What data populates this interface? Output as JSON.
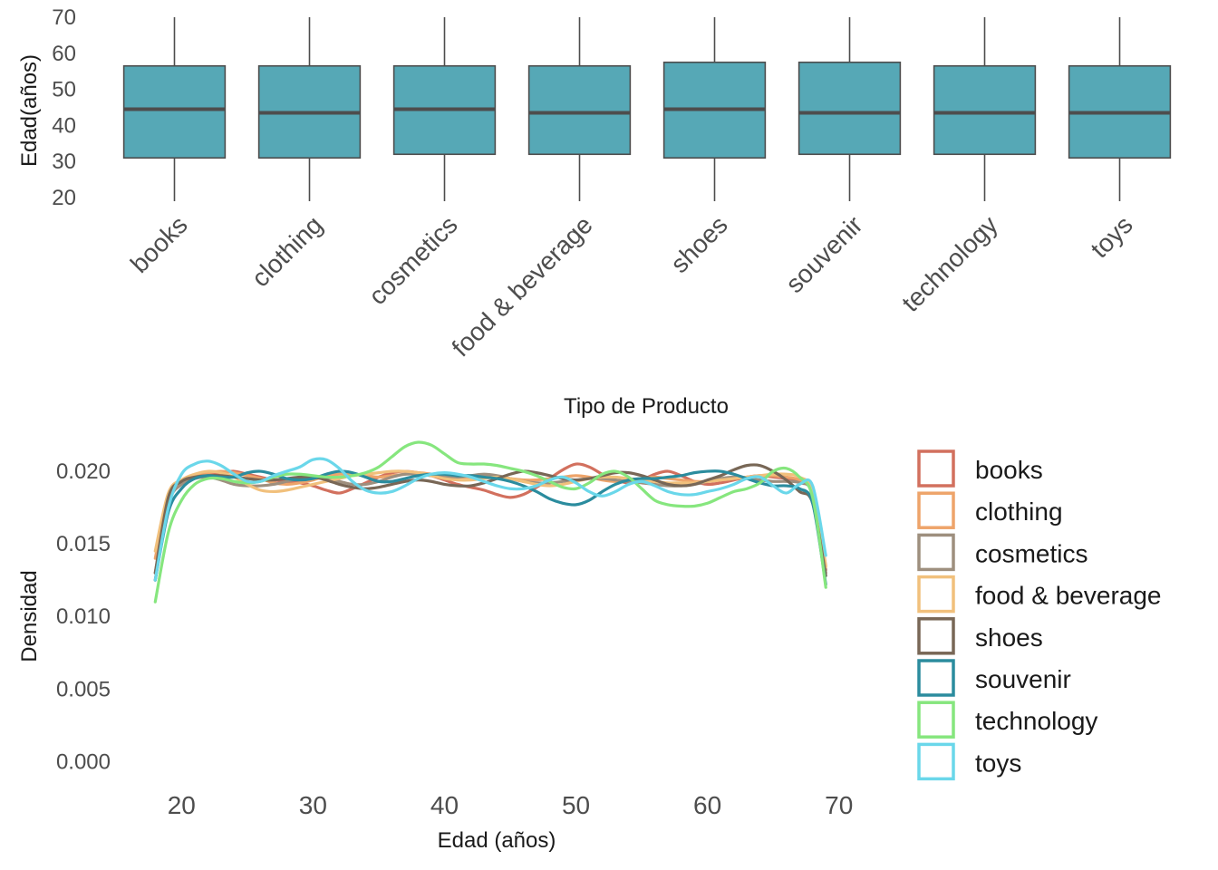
{
  "chart_data": [
    {
      "type": "box",
      "xlabel": "Tipo de Producto",
      "ylabel": "Edad(años)",
      "ylim": [
        18,
        71
      ],
      "yticks": [
        20,
        30,
        40,
        50,
        60,
        70
      ],
      "fill_color": "#56A8B6",
      "categories": [
        "books",
        "clothing",
        "cosmetics",
        "food & beverage",
        "shoes",
        "souvenir",
        "technology",
        "toys"
      ],
      "boxes": [
        {
          "min": 19,
          "q1": 31,
          "median": 44.5,
          "q3": 56.5,
          "max": 70
        },
        {
          "min": 19,
          "q1": 31,
          "median": 43.5,
          "q3": 56.5,
          "max": 70
        },
        {
          "min": 19,
          "q1": 32,
          "median": 44.5,
          "q3": 56.5,
          "max": 70
        },
        {
          "min": 19,
          "q1": 32,
          "median": 43.5,
          "q3": 56.5,
          "max": 70
        },
        {
          "min": 19,
          "q1": 31,
          "median": 44.5,
          "q3": 57.5,
          "max": 70
        },
        {
          "min": 19,
          "q1": 32,
          "median": 43.5,
          "q3": 57.5,
          "max": 70
        },
        {
          "min": 19,
          "q1": 32,
          "median": 43.5,
          "q3": 56.5,
          "max": 70
        },
        {
          "min": 19,
          "q1": 31,
          "median": 43.5,
          "q3": 56.5,
          "max": 70
        }
      ]
    },
    {
      "type": "line",
      "xlabel": "Edad (años)",
      "ylabel": "Densidad",
      "xlim": [
        15.5,
        72.5
      ],
      "ylim": [
        -0.0016,
        0.0225
      ],
      "xticks": [
        20,
        30,
        40,
        50,
        60,
        70
      ],
      "yticks": [
        0.0,
        0.005,
        0.01,
        0.015,
        0.02
      ],
      "ytick_labels": [
        "0.000",
        "0.005",
        "0.010",
        "0.015",
        "0.020"
      ],
      "legend_position": "right",
      "x": [
        18,
        19,
        20,
        21,
        22,
        23,
        24,
        25,
        26,
        27,
        28,
        29,
        30,
        31,
        32,
        33,
        34,
        35,
        36,
        37,
        38,
        39,
        40,
        41,
        42,
        43,
        44,
        45,
        46,
        47,
        48,
        49,
        50,
        51,
        52,
        53,
        54,
        55,
        56,
        57,
        58,
        59,
        60,
        61,
        62,
        63,
        64,
        65,
        66,
        67,
        68,
        69
      ],
      "series": [
        {
          "name": "books",
          "color": "#D2705E",
          "values": [
            0.0125,
            0.0178,
            0.0192,
            0.0197,
            0.0198,
            0.0199,
            0.02,
            0.0198,
            0.0196,
            0.0194,
            0.0193,
            0.0192,
            0.019,
            0.0187,
            0.0185,
            0.0188,
            0.0192,
            0.0196,
            0.0199,
            0.02,
            0.0199,
            0.0197,
            0.0194,
            0.0191,
            0.0189,
            0.0187,
            0.0184,
            0.0182,
            0.0184,
            0.0189,
            0.0195,
            0.0201,
            0.0205,
            0.0203,
            0.0198,
            0.0194,
            0.0192,
            0.0194,
            0.0198,
            0.02,
            0.0197,
            0.0193,
            0.0191,
            0.0192,
            0.0194,
            0.0196,
            0.0197,
            0.0196,
            0.0195,
            0.0193,
            0.0185,
            0.0132
          ]
        },
        {
          "name": "clothing",
          "color": "#EEA46A",
          "values": [
            0.014,
            0.0183,
            0.0193,
            0.0197,
            0.0199,
            0.02,
            0.0199,
            0.0197,
            0.0195,
            0.0192,
            0.0191,
            0.0192,
            0.0194,
            0.0197,
            0.0198,
            0.0198,
            0.0197,
            0.0196,
            0.0197,
            0.0198,
            0.0199,
            0.0198,
            0.0197,
            0.0196,
            0.0196,
            0.0197,
            0.0196,
            0.0195,
            0.0194,
            0.0194,
            0.0195,
            0.0196,
            0.0197,
            0.0196,
            0.0194,
            0.0193,
            0.0194,
            0.0195,
            0.0196,
            0.0195,
            0.0194,
            0.0193,
            0.0193,
            0.0194,
            0.0195,
            0.0196,
            0.0197,
            0.0197,
            0.0196,
            0.0194,
            0.0186,
            0.0135
          ]
        },
        {
          "name": "cosmetics",
          "color": "#9E8F7E",
          "values": [
            0.013,
            0.0178,
            0.0191,
            0.0195,
            0.0196,
            0.0194,
            0.0191,
            0.019,
            0.019,
            0.0191,
            0.0193,
            0.0195,
            0.0196,
            0.0195,
            0.0193,
            0.0191,
            0.0191,
            0.0193,
            0.0196,
            0.0198,
            0.0198,
            0.0197,
            0.0196,
            0.0196,
            0.0197,
            0.0198,
            0.0197,
            0.0195,
            0.0193,
            0.0192,
            0.0192,
            0.0193,
            0.0194,
            0.0195,
            0.0195,
            0.0194,
            0.0193,
            0.0192,
            0.0191,
            0.019,
            0.019,
            0.0191,
            0.0193,
            0.0195,
            0.0196,
            0.0195,
            0.0194,
            0.0193,
            0.0193,
            0.0192,
            0.0184,
            0.013
          ]
        },
        {
          "name": "food & beverage",
          "color": "#F1C07C",
          "values": [
            0.0145,
            0.0185,
            0.0194,
            0.0198,
            0.02,
            0.0199,
            0.0196,
            0.0191,
            0.0187,
            0.0186,
            0.0187,
            0.0189,
            0.0191,
            0.0193,
            0.0195,
            0.0197,
            0.0198,
            0.0199,
            0.02,
            0.02,
            0.0199,
            0.0197,
            0.0195,
            0.0194,
            0.0194,
            0.0195,
            0.0196,
            0.0195,
            0.0193,
            0.0191,
            0.019,
            0.0191,
            0.0193,
            0.0195,
            0.0196,
            0.0196,
            0.0195,
            0.0194,
            0.0193,
            0.0192,
            0.0192,
            0.0192,
            0.0193,
            0.0194,
            0.0195,
            0.0196,
            0.0197,
            0.0198,
            0.0198,
            0.0196,
            0.0186,
            0.0134
          ]
        },
        {
          "name": "shoes",
          "color": "#786756",
          "values": [
            0.013,
            0.0182,
            0.0193,
            0.0196,
            0.0197,
            0.0197,
            0.0196,
            0.0195,
            0.0194,
            0.0194,
            0.0195,
            0.0196,
            0.0196,
            0.0194,
            0.0191,
            0.0189,
            0.0188,
            0.0189,
            0.0191,
            0.0193,
            0.0194,
            0.0193,
            0.0191,
            0.019,
            0.019,
            0.0192,
            0.0195,
            0.0198,
            0.02,
            0.0199,
            0.0197,
            0.0195,
            0.0194,
            0.0195,
            0.0197,
            0.0199,
            0.0199,
            0.0197,
            0.0194,
            0.0191,
            0.019,
            0.0191,
            0.0194,
            0.0197,
            0.0201,
            0.0204,
            0.0204,
            0.02,
            0.0194,
            0.0186,
            0.0178,
            0.0128
          ]
        },
        {
          "name": "souvenir",
          "color": "#2B8C9E",
          "values": [
            0.0125,
            0.0172,
            0.0188,
            0.0195,
            0.0197,
            0.0196,
            0.0196,
            0.0199,
            0.02,
            0.0198,
            0.0195,
            0.0194,
            0.0195,
            0.0198,
            0.02,
            0.0199,
            0.0196,
            0.0193,
            0.0193,
            0.0195,
            0.0197,
            0.0198,
            0.0198,
            0.0197,
            0.0197,
            0.0196,
            0.0195,
            0.0193,
            0.019,
            0.0186,
            0.0181,
            0.0178,
            0.0177,
            0.018,
            0.0186,
            0.0191,
            0.0194,
            0.0195,
            0.0195,
            0.0196,
            0.0197,
            0.0199,
            0.02,
            0.02,
            0.0198,
            0.0195,
            0.0192,
            0.019,
            0.019,
            0.0188,
            0.0178,
            0.0122
          ]
        },
        {
          "name": "technology",
          "color": "#86E67E",
          "values": [
            0.011,
            0.0158,
            0.018,
            0.0191,
            0.0195,
            0.0195,
            0.0193,
            0.0192,
            0.0193,
            0.0196,
            0.0198,
            0.0198,
            0.0197,
            0.0196,
            0.0196,
            0.0197,
            0.0199,
            0.0203,
            0.021,
            0.0217,
            0.022,
            0.0218,
            0.0212,
            0.0206,
            0.0205,
            0.0205,
            0.0204,
            0.0202,
            0.02,
            0.0197,
            0.0193,
            0.0189,
            0.0188,
            0.0192,
            0.0198,
            0.02,
            0.0196,
            0.0188,
            0.018,
            0.0177,
            0.0176,
            0.0176,
            0.0178,
            0.0182,
            0.0186,
            0.0188,
            0.0192,
            0.02,
            0.0202,
            0.0196,
            0.0182,
            0.012
          ]
        },
        {
          "name": "toys",
          "color": "#6AD7EA",
          "values": [
            0.0125,
            0.0175,
            0.0198,
            0.0205,
            0.0207,
            0.0204,
            0.0198,
            0.0193,
            0.0193,
            0.0197,
            0.02,
            0.0203,
            0.0208,
            0.0208,
            0.0202,
            0.0193,
            0.0187,
            0.0185,
            0.0186,
            0.019,
            0.0195,
            0.0198,
            0.0199,
            0.0198,
            0.0196,
            0.0193,
            0.019,
            0.0188,
            0.0188,
            0.019,
            0.0194,
            0.0196,
            0.0192,
            0.0186,
            0.0183,
            0.0186,
            0.0191,
            0.0193,
            0.019,
            0.0186,
            0.0184,
            0.0184,
            0.0186,
            0.0188,
            0.0191,
            0.0195,
            0.0196,
            0.019,
            0.0185,
            0.0191,
            0.019,
            0.0142
          ]
        }
      ]
    }
  ]
}
